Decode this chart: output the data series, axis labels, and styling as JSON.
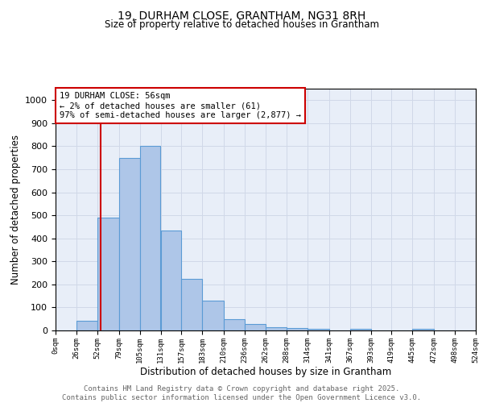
{
  "title_line1": "19, DURHAM CLOSE, GRANTHAM, NG31 8RH",
  "title_line2": "Size of property relative to detached houses in Grantham",
  "xlabel": "Distribution of detached houses by size in Grantham",
  "ylabel": "Number of detached properties",
  "bin_edges": [
    0,
    26,
    52,
    79,
    105,
    131,
    157,
    183,
    210,
    236,
    262,
    288,
    314,
    341,
    367,
    393,
    419,
    445,
    472,
    498,
    524
  ],
  "bar_heights": [
    0,
    42,
    490,
    750,
    800,
    435,
    225,
    130,
    50,
    28,
    15,
    10,
    8,
    0,
    7,
    0,
    0,
    8,
    0,
    0
  ],
  "bar_color": "#aec6e8",
  "bar_edge_color": "#5b9bd5",
  "bar_edge_width": 0.8,
  "property_line_x": 56,
  "property_line_color": "#cc0000",
  "annotation_box_text": "19 DURHAM CLOSE: 56sqm\n← 2% of detached houses are smaller (61)\n97% of semi-detached houses are larger (2,877) →",
  "annotation_fontsize": 7.5,
  "annotation_box_color": "#cc0000",
  "ylim": [
    0,
    1050
  ],
  "xlim": [
    0,
    524
  ],
  "tick_labels": [
    "0sqm",
    "26sqm",
    "52sqm",
    "79sqm",
    "105sqm",
    "131sqm",
    "157sqm",
    "183sqm",
    "210sqm",
    "236sqm",
    "262sqm",
    "288sqm",
    "314sqm",
    "341sqm",
    "367sqm",
    "393sqm",
    "419sqm",
    "445sqm",
    "472sqm",
    "498sqm",
    "524sqm"
  ],
  "tick_positions": [
    0,
    26,
    52,
    79,
    105,
    131,
    157,
    183,
    210,
    236,
    262,
    288,
    314,
    341,
    367,
    393,
    419,
    445,
    472,
    498,
    524
  ],
  "yticks": [
    0,
    100,
    200,
    300,
    400,
    500,
    600,
    700,
    800,
    900,
    1000
  ],
  "grid_color": "#d0d8e8",
  "background_color": "#e8eef8",
  "footer_text": "Contains HM Land Registry data © Crown copyright and database right 2025.\nContains public sector information licensed under the Open Government Licence v3.0.",
  "footer_fontsize": 6.5
}
